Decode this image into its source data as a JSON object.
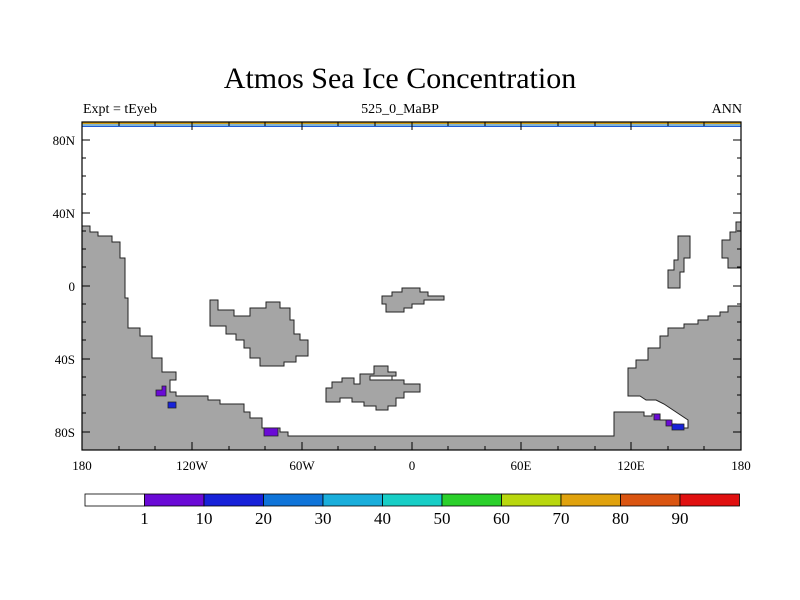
{
  "figure": {
    "title": "Atmos Sea Ice Concentration",
    "left_label": "Expt = tEyeb",
    "center_label": "525_0_MaBP",
    "right_label": "ANN"
  },
  "map": {
    "lat_ticks": [
      "80N",
      "40N",
      "0",
      "40S",
      "80S"
    ],
    "lon_ticks": [
      "180",
      "120W",
      "60W",
      "0",
      "60E",
      "120E",
      "180"
    ]
  },
  "colorbar": {
    "labels": [
      "1",
      "10",
      "20",
      "30",
      "40",
      "50",
      "60",
      "70",
      "80",
      "90"
    ],
    "colors": [
      "#ffffff",
      "#6a0ad6",
      "#1722d9",
      "#0f74d9",
      "#1aaedb",
      "#17cec6",
      "#2bd02b",
      "#b9d70e",
      "#e0a20d",
      "#da5511",
      "#e01010"
    ]
  },
  "colors": {
    "land": "#a5a5a5",
    "ice": "#6a0ad6",
    "ice_dark": "#1722d9",
    "top_strip": [
      "#d4a017",
      "#7fb3d5",
      "#1f5bd6"
    ]
  }
}
